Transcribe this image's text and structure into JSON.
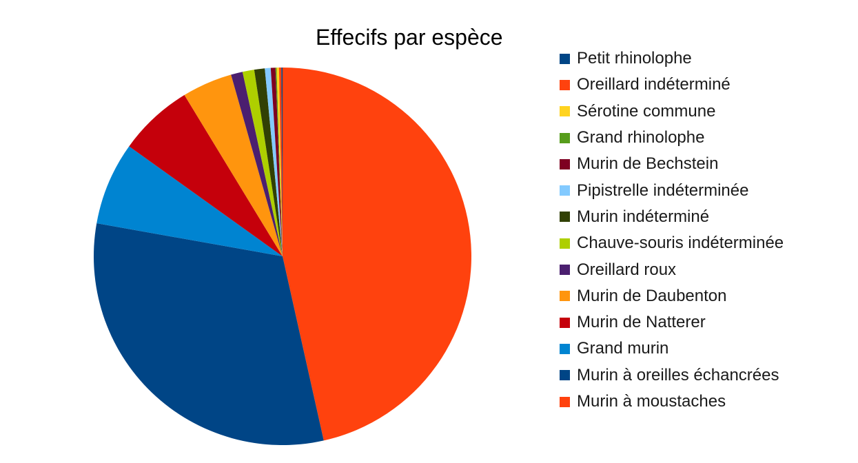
{
  "chart_data": {
    "type": "pie",
    "title": "Effecifs par espèce",
    "legend_position": "right",
    "slices": [
      {
        "name": "Petit rhinolophe",
        "value": 0.1,
        "color": "#004586"
      },
      {
        "name": "Oreillard indéterminé",
        "value": 0.2,
        "color": "#ff420e"
      },
      {
        "name": "Sérotine commune",
        "value": 0.2,
        "color": "#ffd320"
      },
      {
        "name": "Grand rhinolophe",
        "value": 0.1,
        "color": "#579d1c"
      },
      {
        "name": "Murin de Bechstein",
        "value": 0.4,
        "color": "#7e0021"
      },
      {
        "name": "Pipistrelle indéterminée",
        "value": 0.5,
        "color": "#83caff"
      },
      {
        "name": "Murin indéterminé",
        "value": 0.9,
        "color": "#314004"
      },
      {
        "name": "Chauve-souris indéterminée",
        "value": 1.0,
        "color": "#aecf00"
      },
      {
        "name": "Oreillard roux",
        "value": 1.0,
        "color": "#4b1f6f"
      },
      {
        "name": "Murin de Daubenton",
        "value": 4.3,
        "color": "#ff950e"
      },
      {
        "name": "Murin de Natterer",
        "value": 6.4,
        "color": "#c5000b"
      },
      {
        "name": "Grand murin",
        "value": 7.1,
        "color": "#0084d1"
      },
      {
        "name": "Murin à oreilles échancrées",
        "value": 31.3,
        "color": "#004586"
      },
      {
        "name": "Murin à moustaches",
        "value": 46.5,
        "color": "#ff420e"
      }
    ]
  }
}
